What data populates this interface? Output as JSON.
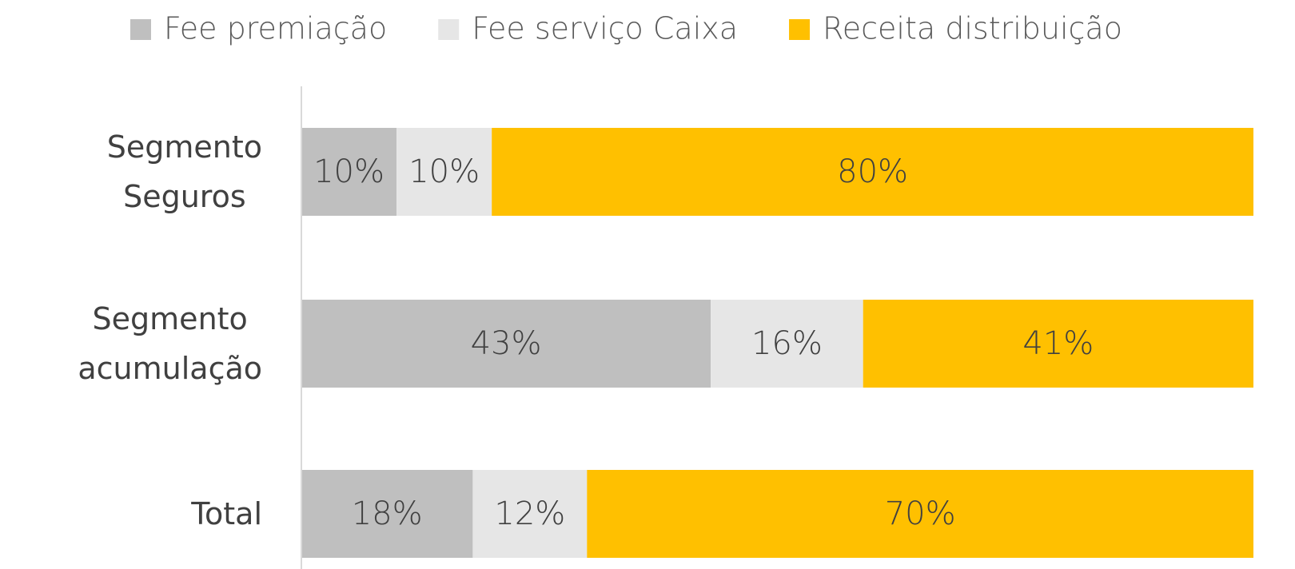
{
  "chart_data": {
    "type": "stacked-barh",
    "categories": [
      "Segmento Seguros",
      "Segmento acumulação",
      "Total"
    ],
    "series": [
      {
        "name": "Fee premiação",
        "color": "#bfbfbf",
        "values": [
          10,
          43,
          18
        ],
        "value_labels": [
          "10%",
          "43%",
          "18%"
        ]
      },
      {
        "name": "Fee serviço Caixa",
        "color": "#e6e6e6",
        "values": [
          10,
          16,
          12
        ],
        "value_labels": [
          "10%",
          "16%",
          "12%"
        ]
      },
      {
        "name": "Receita distribuição",
        "color": "#ffc000",
        "values": [
          80,
          41,
          70
        ],
        "value_labels": [
          "80%",
          "41%",
          "70%"
        ]
      }
    ],
    "xlim": [
      0,
      100
    ],
    "legend": "top"
  }
}
